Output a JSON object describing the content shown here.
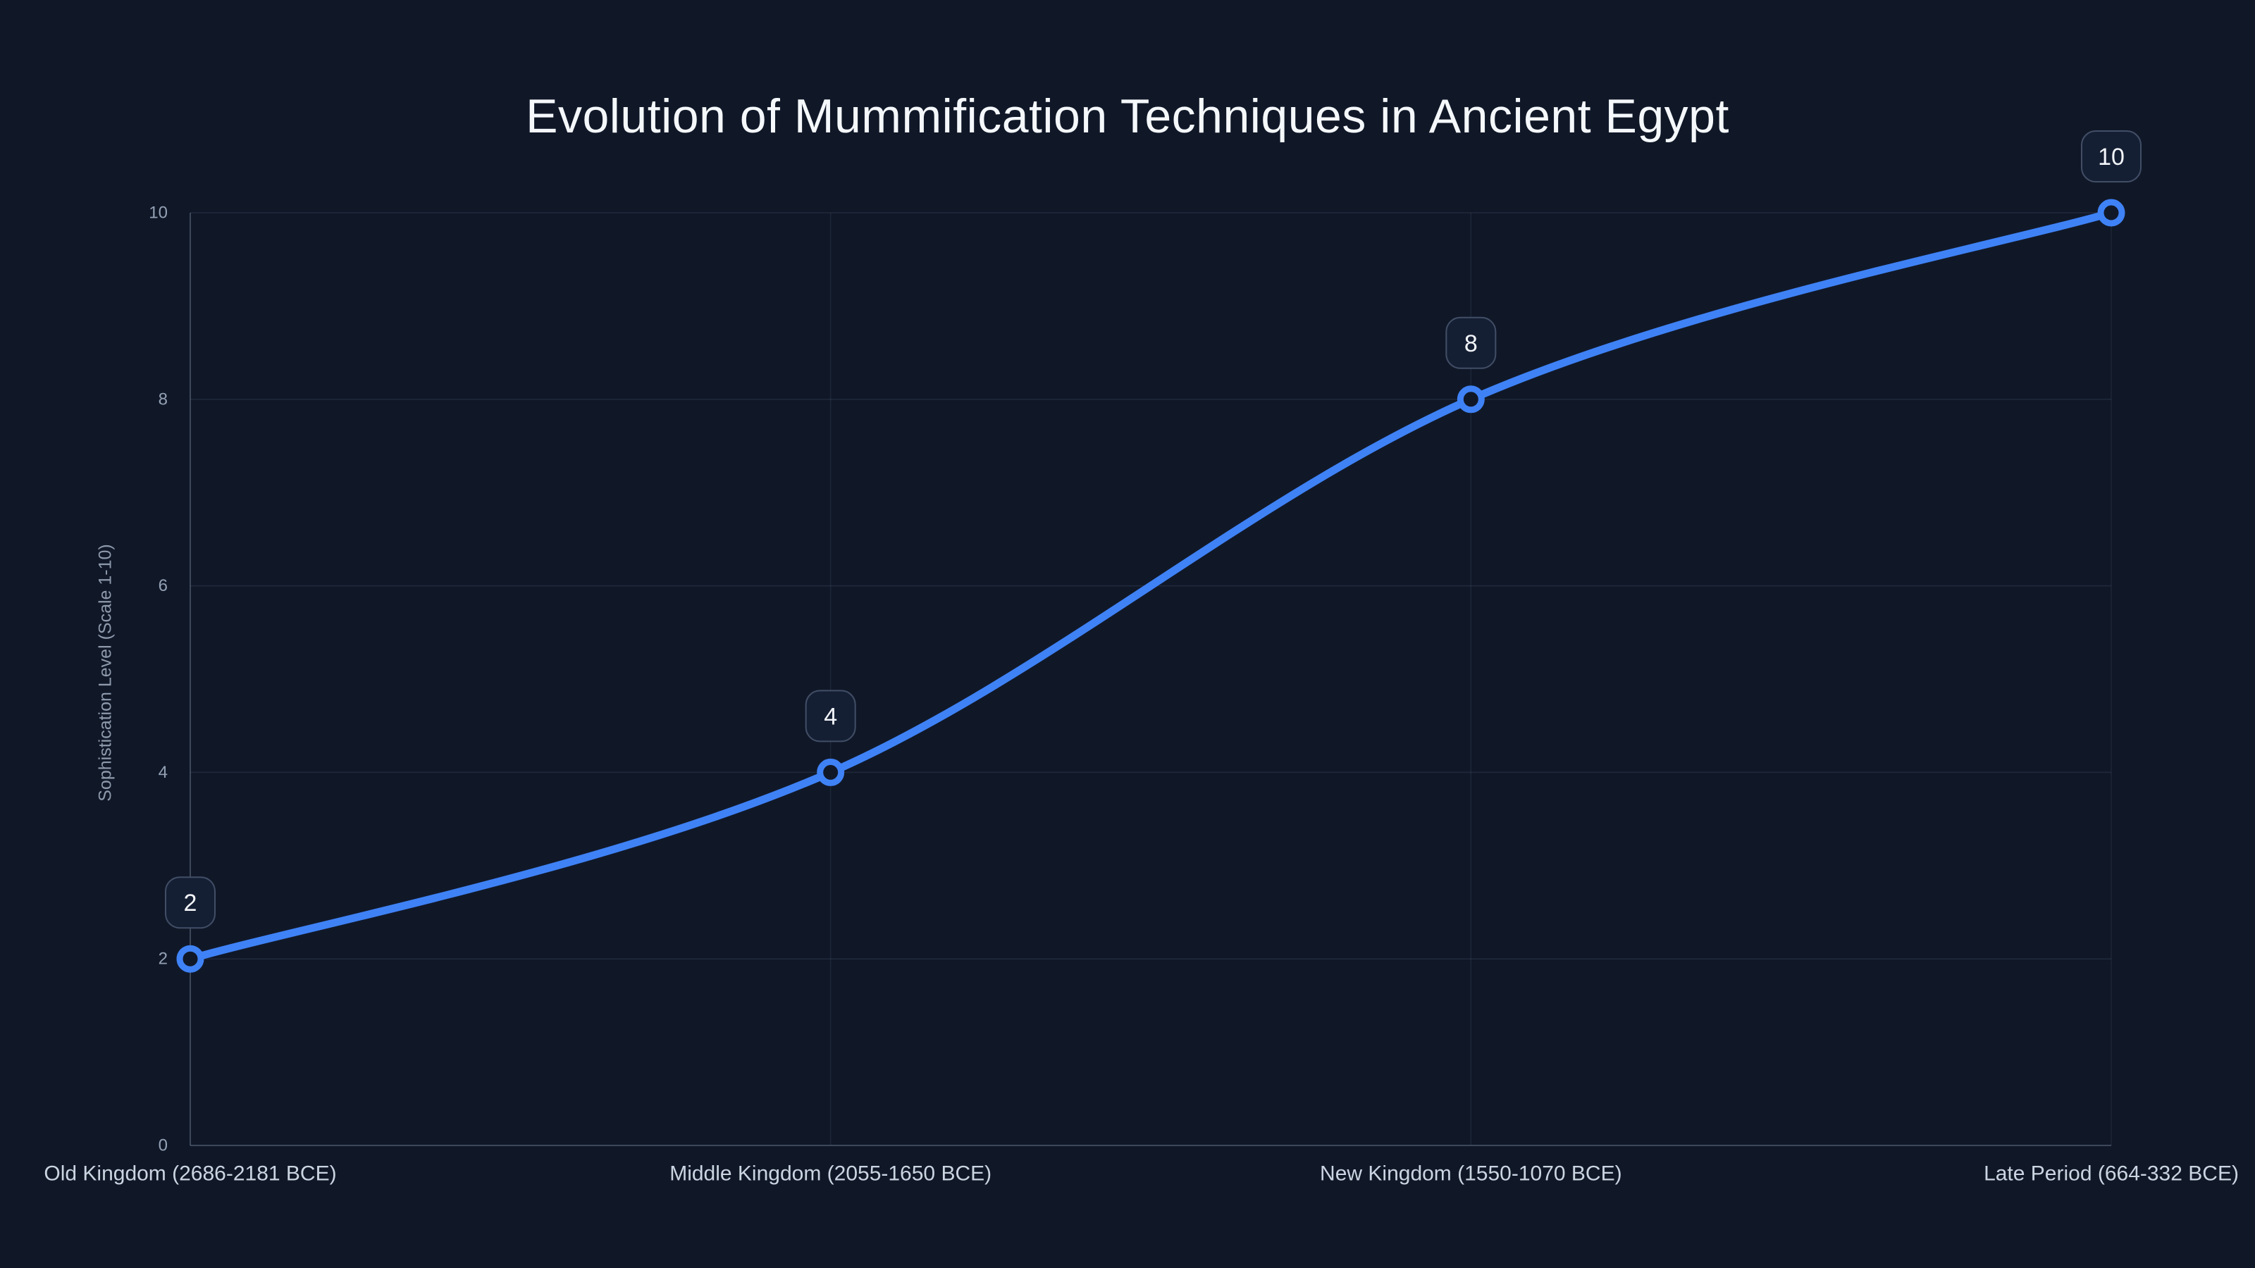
{
  "chart_data": {
    "type": "line",
    "title": "Evolution of Mummification Techniques in Ancient Egypt",
    "xlabel": "",
    "ylabel": "Sophistication Level (Scale 1-10)",
    "categories": [
      "Old Kingdom (2686-2181 BCE)",
      "Middle Kingdom (2055-1650 BCE)",
      "New Kingdom (1550-1070 BCE)",
      "Late Period (664-332 BCE)"
    ],
    "values": [
      2,
      4,
      8,
      10
    ],
    "point_labels": [
      "2",
      "4",
      "8",
      "10"
    ],
    "yticks": [
      0,
      2,
      4,
      6,
      8,
      10
    ],
    "ylim": [
      0,
      10
    ],
    "grid": true,
    "legend": false,
    "line_shape": "smooth",
    "colors": {
      "background": "#101828",
      "line": "#3f82f6",
      "grid_h": "rgba(148,163,184,0.13)",
      "grid_v": "rgba(148,163,184,0.10)",
      "axis": "rgba(148,163,184,0.34)",
      "tick_label": "#94a1b4",
      "x_label": "#cbd5e1",
      "title": "#f5f8fb",
      "y_axis_title": "#8e9aac",
      "badge_bg": "#151f34",
      "badge_border": "#414e66",
      "badge_text": "#f2f5f9"
    }
  }
}
